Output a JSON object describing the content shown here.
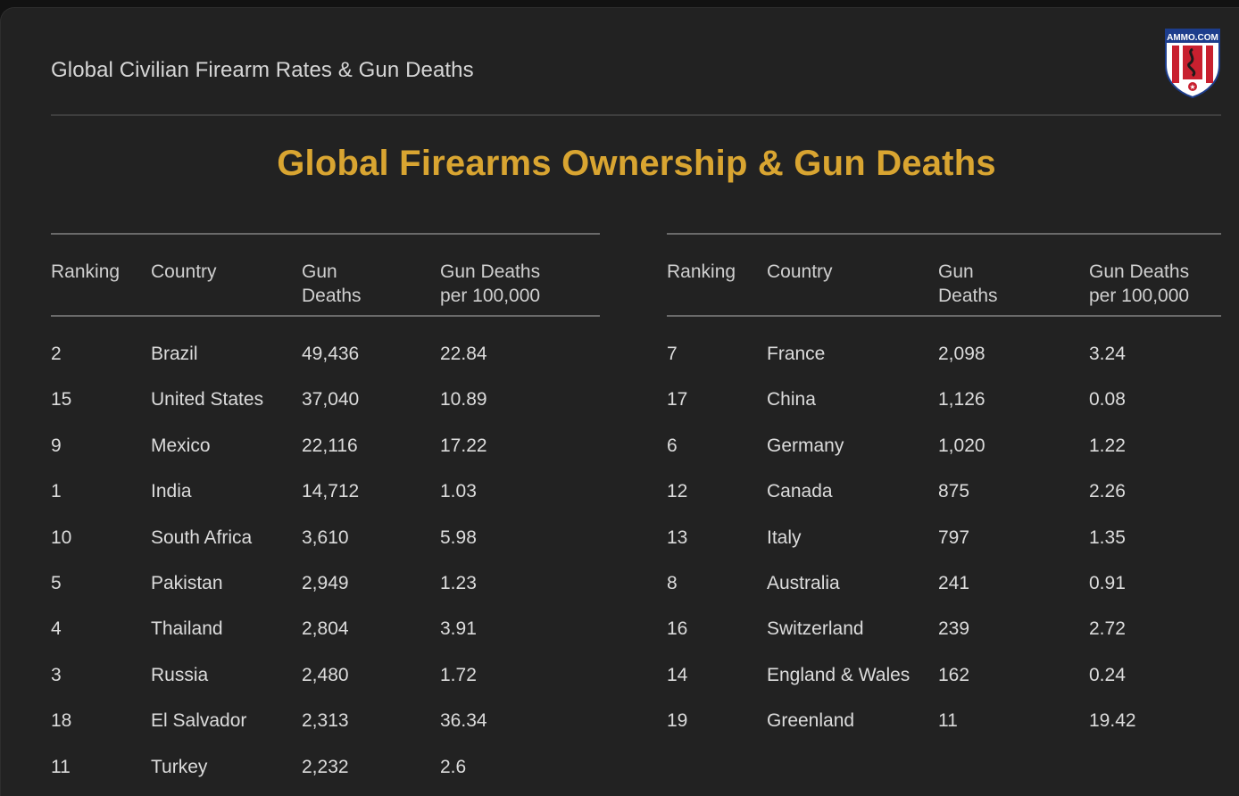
{
  "header": {
    "title": "Global Civilian Firearm Rates & Gun Deaths",
    "logo_text": "AMMO.COM"
  },
  "main_title": "Global Firearms Ownership & Gun Deaths",
  "colors": {
    "accent": "#d9a531",
    "background": "#222222",
    "text": "#dcdcdc"
  },
  "columns": {
    "ranking": "Ranking",
    "country": "Country",
    "gun_deaths_1": "Gun",
    "gun_deaths_2": "Deaths",
    "per_100k_1": "Gun Deaths",
    "per_100k_2": "per 100,000"
  },
  "left_table": [
    {
      "ranking": "2",
      "country": "Brazil",
      "deaths": "49,436",
      "rate": "22.84"
    },
    {
      "ranking": "15",
      "country": "United States",
      "deaths": "37,040",
      "rate": "10.89"
    },
    {
      "ranking": "9",
      "country": "Mexico",
      "deaths": "22,116",
      "rate": "17.22"
    },
    {
      "ranking": "1",
      "country": "India",
      "deaths": "14,712",
      "rate": "1.03"
    },
    {
      "ranking": "10",
      "country": "South Africa",
      "deaths": "3,610",
      "rate": "5.98"
    },
    {
      "ranking": "5",
      "country": "Pakistan",
      "deaths": "2,949",
      "rate": "1.23"
    },
    {
      "ranking": "4",
      "country": "Thailand",
      "deaths": "2,804",
      "rate": "3.91"
    },
    {
      "ranking": "3",
      "country": "Russia",
      "deaths": "2,480",
      "rate": "1.72"
    },
    {
      "ranking": "18",
      "country": "El Salvador",
      "deaths": "2,313",
      "rate": "36.34"
    },
    {
      "ranking": "11",
      "country": "Turkey",
      "deaths": "2,232",
      "rate": "2.6"
    }
  ],
  "right_table": [
    {
      "ranking": "7",
      "country": "France",
      "deaths": "2,098",
      "rate": "3.24"
    },
    {
      "ranking": "17",
      "country": "China",
      "deaths": "1,126",
      "rate": "0.08"
    },
    {
      "ranking": "6",
      "country": "Germany",
      "deaths": "1,020",
      "rate": "1.22"
    },
    {
      "ranking": "12",
      "country": "Canada",
      "deaths": "875",
      "rate": "2.26"
    },
    {
      "ranking": "13",
      "country": "Italy",
      "deaths": "797",
      "rate": "1.35"
    },
    {
      "ranking": "8",
      "country": "Australia",
      "deaths": "241",
      "rate": "0.91"
    },
    {
      "ranking": "16",
      "country": "Switzerland",
      "deaths": "239",
      "rate": "2.72"
    },
    {
      "ranking": "14",
      "country": "England & Wales",
      "deaths": "162",
      "rate": "0.24"
    },
    {
      "ranking": "19",
      "country": "Greenland",
      "deaths": "11",
      "rate": "19.42"
    }
  ]
}
